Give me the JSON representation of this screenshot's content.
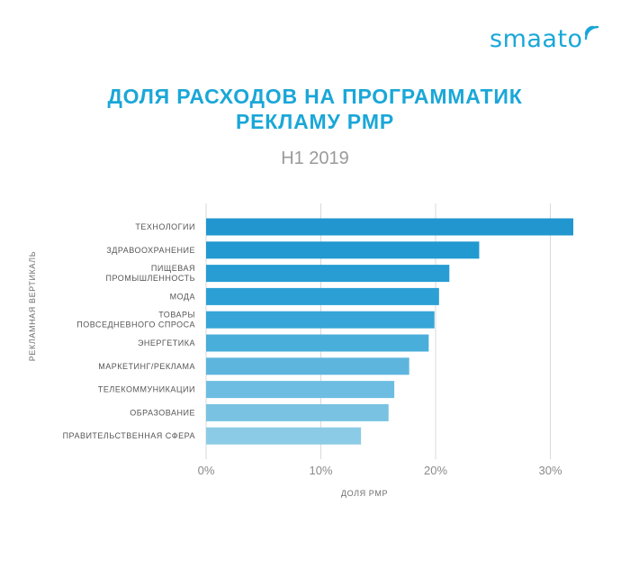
{
  "logo": {
    "text": "smaato",
    "icon": "signal-waves-icon",
    "color": "#1aa7d8"
  },
  "title_lines": [
    "ДОЛЯ РАСХОДОВ НА ПРОГРАММАТИК",
    "РЕКЛАМУ PMP"
  ],
  "subtitle": "H1 2019",
  "chart_data": {
    "type": "bar",
    "orientation": "horizontal",
    "categories": [
      [
        "ТЕХНОЛОГИИ"
      ],
      [
        "ЗДРАВООХРАНЕНИЕ"
      ],
      [
        "ПИЩЕВАЯ",
        "ПРОМЫШЛЕННОСТЬ"
      ],
      [
        "МОДА"
      ],
      [
        "ТОВАРЫ",
        "ПОВСЕДНЕВНОГО СПРОСА"
      ],
      [
        "ЭНЕРГЕТИКА"
      ],
      [
        "МАРКЕТИНГ/РЕКЛАМА"
      ],
      [
        "ТЕЛЕКОММУНИКАЦИИ"
      ],
      [
        "ОБРАЗОВАНИЕ"
      ],
      [
        "ПРАВИТЕЛЬСТВЕННАЯ СФЕРА"
      ]
    ],
    "values": [
      32.0,
      23.8,
      21.2,
      20.3,
      19.9,
      19.4,
      17.7,
      16.4,
      15.9,
      13.5
    ],
    "colors": [
      "#2196cf",
      "#2299d0",
      "#279dd3",
      "#2ca0d4",
      "#37a5d7",
      "#4aaeda",
      "#5db5dd",
      "#6cbde1",
      "#79c2e2",
      "#8ccbe6"
    ],
    "xlim": [
      0,
      32
    ],
    "xticks": [
      0,
      10,
      20,
      30
    ],
    "xtick_labels": [
      "0%",
      "10%",
      "20%",
      "30%"
    ],
    "xlabel": "ДОЛЯ PMP",
    "ylabel": "РЕКЛАМНАЯ ВЕРТИКАЛЬ",
    "grid": "vertical"
  }
}
